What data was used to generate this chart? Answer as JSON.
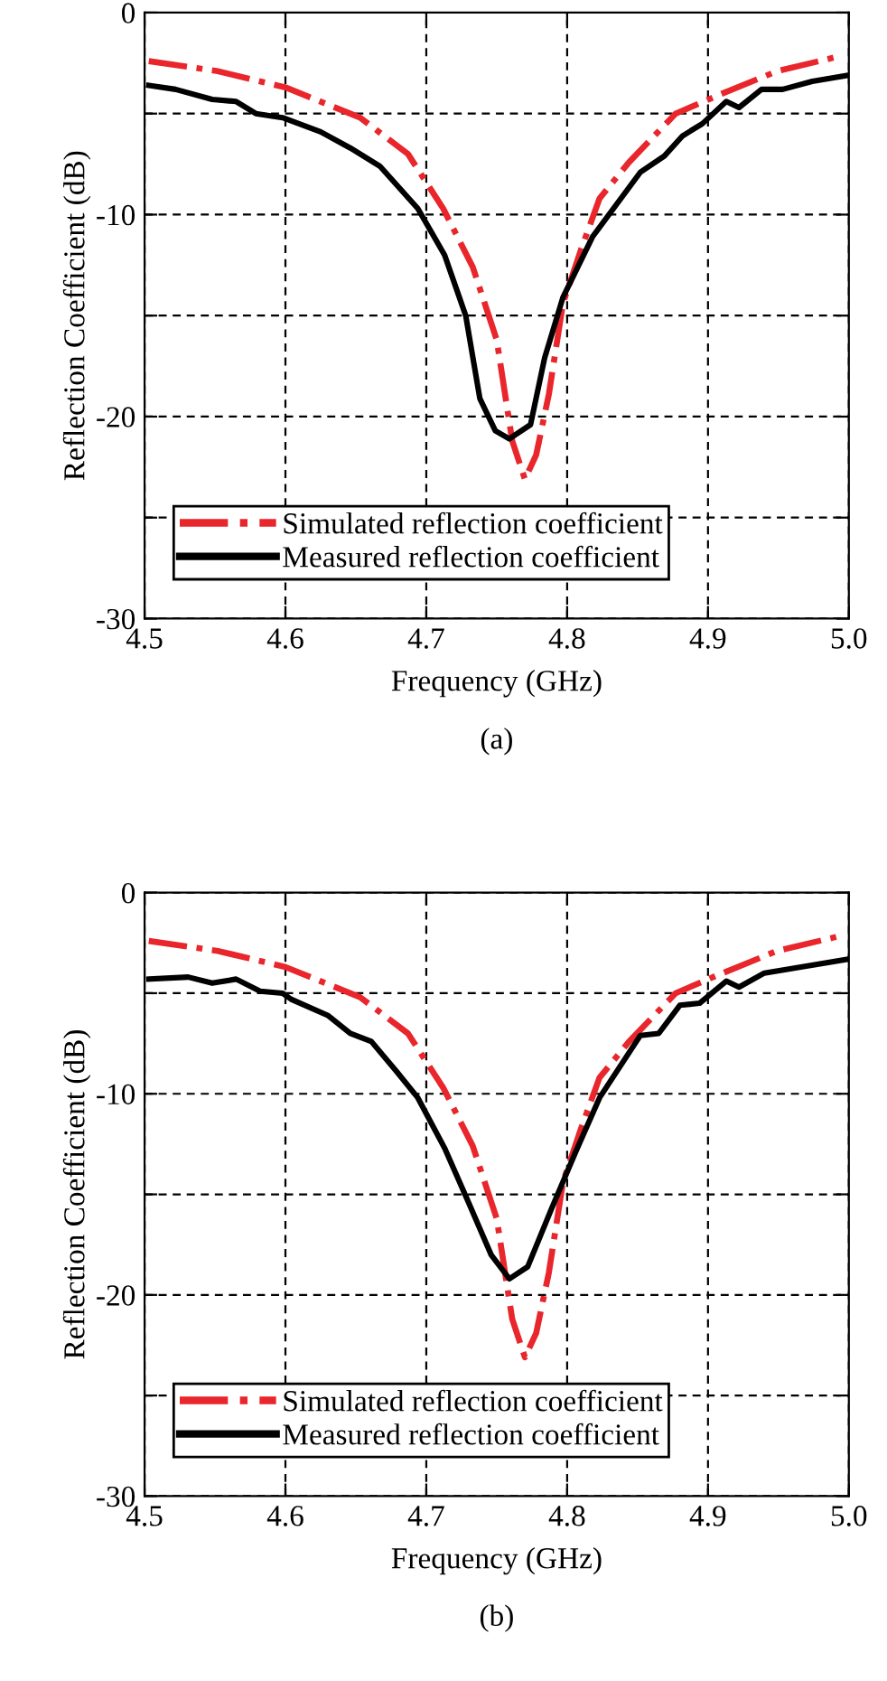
{
  "chart_data": [
    {
      "type": "line",
      "xlabel": "Frequency (GHz)",
      "ylabel": "Reflection Coefficient (dB)",
      "annotations": [
        "(a)"
      ],
      "xlim": [
        4.5,
        5.0
      ],
      "ylim": [
        -30,
        0
      ],
      "xticks": [
        4.5,
        4.6,
        4.7,
        4.8,
        4.9,
        {
          "value": 5.0,
          "label": "5.0"
        }
      ],
      "yticks": [
        0,
        {
          "value": -5,
          "label": null
        },
        -10,
        {
          "value": -15,
          "label": null
        },
        -20,
        {
          "value": -25,
          "label": null
        },
        -30
      ],
      "grid": true,
      "legend": "bottom left",
      "series": [
        {
          "name": "Simulated reflection coefficient",
          "color": "#e8262b",
          "line_style": "dashdot",
          "x": [
            4.503,
            4.552,
            4.6,
            4.653,
            4.687,
            4.712,
            4.733,
            4.75,
            4.761,
            4.77,
            4.778,
            4.787,
            4.797,
            4.81,
            4.823,
            4.844,
            4.877,
            4.907,
            4.949,
            4.991
          ],
          "values": [
            -2.4,
            -2.9,
            -3.7,
            -5.2,
            -7.0,
            -9.7,
            -12.6,
            -16.2,
            -21.2,
            -23.1,
            -21.9,
            -18.9,
            -14.4,
            -11.7,
            -9.2,
            -7.4,
            -5.0,
            -4.1,
            -2.9,
            -2.2
          ]
        },
        {
          "name": "Measured reflection coefficient",
          "color": "#000000",
          "line_style": "solid",
          "x": [
            4.503,
            4.522,
            4.548,
            4.565,
            4.579,
            4.598,
            4.625,
            4.646,
            4.667,
            4.694,
            4.713,
            4.728,
            4.738,
            4.749,
            4.759,
            4.774,
            4.784,
            4.797,
            4.818,
            4.852,
            4.869,
            4.882,
            4.896,
            4.913,
            4.922,
            4.938,
            4.953,
            4.974,
            5.0
          ],
          "values": [
            -3.6,
            -3.8,
            -4.3,
            -4.4,
            -5.0,
            -5.2,
            -5.9,
            -6.7,
            -7.6,
            -9.7,
            -12.0,
            -15.0,
            -19.1,
            -20.7,
            -21.1,
            -20.4,
            -17.1,
            -14.1,
            -11.1,
            -7.9,
            -7.1,
            -6.1,
            -5.5,
            -4.4,
            -4.7,
            -3.8,
            -3.8,
            -3.4,
            -3.1
          ]
        }
      ]
    },
    {
      "type": "line",
      "xlabel": "Frequency (GHz)",
      "ylabel": "Reflection Coefficient (dB)",
      "annotations": [
        "(b)"
      ],
      "xlim": [
        4.5,
        5.0
      ],
      "ylim": [
        -30,
        0
      ],
      "xticks": [
        4.5,
        4.6,
        4.7,
        4.8,
        4.9,
        {
          "value": 5.0,
          "label": "5.0"
        }
      ],
      "yticks": [
        0,
        {
          "value": -5,
          "label": null
        },
        -10,
        {
          "value": -15,
          "label": null
        },
        -20,
        {
          "value": -25,
          "label": null
        },
        -30
      ],
      "grid": true,
      "legend": "bottom left",
      "series": [
        {
          "name": "Simulated reflection coefficient",
          "color": "#e8262b",
          "line_style": "dashdot",
          "x": [
            4.503,
            4.552,
            4.6,
            4.653,
            4.687,
            4.712,
            4.733,
            4.75,
            4.761,
            4.77,
            4.778,
            4.787,
            4.797,
            4.81,
            4.823,
            4.844,
            4.877,
            4.907,
            4.949,
            4.991
          ],
          "values": [
            -2.4,
            -2.9,
            -3.7,
            -5.2,
            -7.0,
            -9.7,
            -12.6,
            -16.2,
            -21.2,
            -23.1,
            -21.9,
            -18.9,
            -14.4,
            -11.7,
            -9.2,
            -7.4,
            -5.0,
            -4.1,
            -2.9,
            -2.2
          ]
        },
        {
          "name": "Measured reflection coefficient",
          "color": "#000000",
          "line_style": "solid",
          "x": [
            4.503,
            4.531,
            4.548,
            4.565,
            4.582,
            4.598,
            4.604,
            4.63,
            4.646,
            4.661,
            4.679,
            4.694,
            4.713,
            4.73,
            4.746,
            4.759,
            4.772,
            4.789,
            4.806,
            4.823,
            4.852,
            4.865,
            4.88,
            4.894,
            4.913,
            4.922,
            4.94,
            4.966,
            5.0
          ],
          "values": [
            -4.3,
            -4.2,
            -4.5,
            -4.3,
            -4.9,
            -5.0,
            -5.3,
            -6.1,
            -7.0,
            -7.4,
            -8.9,
            -10.2,
            -12.7,
            -15.4,
            -18.0,
            -19.2,
            -18.6,
            -15.7,
            -12.9,
            -10.2,
            -7.1,
            -7.0,
            -5.6,
            -5.5,
            -4.4,
            -4.7,
            -4.0,
            -3.7,
            -3.3
          ]
        }
      ]
    }
  ]
}
